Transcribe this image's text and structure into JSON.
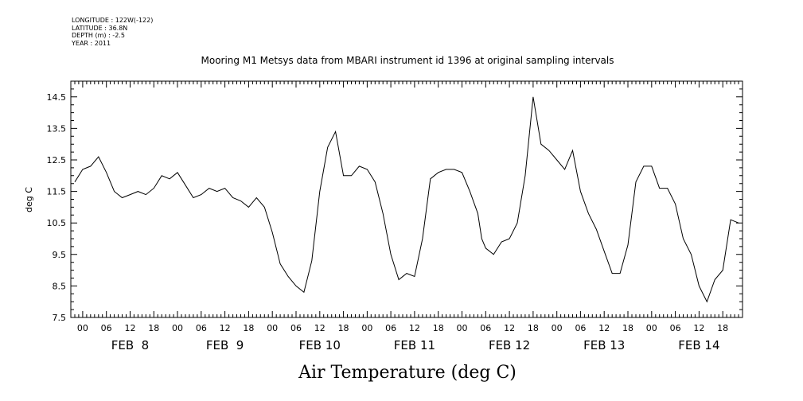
{
  "meta": {
    "longitude": "LONGITUDE : 122W(-122)",
    "latitude": "LATITUDE : 36.8N",
    "depth": "DEPTH (m) : -2.5",
    "year": "YEAR : 2011"
  },
  "chart_data": {
    "type": "line",
    "title": "Mooring M1 Metsys data from MBARI instrument id 1396 at original sampling intervals",
    "xlabel": "Air Temperature (deg C)",
    "ylabel": "deg C",
    "ylim": [
      7.5,
      15.0
    ],
    "xlim_hours": [
      -3,
      167
    ],
    "y_ticks": [
      7.5,
      8.5,
      9.5,
      10.5,
      11.5,
      12.5,
      13.5,
      14.5
    ],
    "y_tick_labels": [
      "7.5",
      "8.5",
      "9.5",
      "10.5",
      "11.5",
      "12.5",
      "13.5",
      "14.5"
    ],
    "x_hour_labels": [
      "00",
      "06",
      "12",
      "18"
    ],
    "days": [
      "FEB  8",
      "FEB  9",
      "FEB 10",
      "FEB 11",
      "FEB 12",
      "FEB 13",
      "FEB 14"
    ],
    "grid": false,
    "series": [
      {
        "x": [
          -2,
          0,
          2,
          4,
          6,
          8,
          10,
          12,
          14,
          16,
          18,
          20,
          22,
          24,
          26,
          28,
          30,
          32,
          34,
          36,
          38,
          40,
          42,
          44,
          46,
          48,
          50,
          52,
          54,
          56,
          58,
          60,
          62,
          64,
          66,
          68,
          70,
          72,
          74,
          76,
          78,
          80,
          82,
          84,
          86,
          88,
          90,
          92,
          94,
          96,
          98,
          100,
          101,
          102,
          104,
          106,
          108,
          110,
          112,
          114,
          116,
          118,
          120,
          122,
          124,
          126,
          128,
          130,
          132,
          134,
          136,
          138,
          140,
          142,
          144,
          146,
          148,
          150,
          152,
          154,
          156,
          158,
          160,
          162,
          164,
          166
        ],
        "y": [
          11.8,
          12.2,
          12.3,
          12.6,
          12.1,
          11.5,
          11.3,
          11.4,
          11.5,
          11.4,
          11.6,
          12.0,
          11.9,
          12.1,
          11.7,
          11.3,
          11.4,
          11.6,
          11.5,
          11.6,
          11.3,
          11.2,
          11.0,
          11.3,
          11.0,
          10.2,
          9.2,
          8.8,
          8.5,
          8.3,
          9.3,
          11.5,
          12.9,
          13.4,
          12.0,
          12.0,
          12.3,
          12.2,
          11.8,
          10.8,
          9.5,
          8.7,
          8.9,
          8.8,
          10.0,
          11.9,
          12.1,
          12.2,
          12.2,
          12.1,
          11.5,
          10.8,
          10.0,
          9.7,
          9.5,
          9.9,
          10.0,
          10.5,
          12.0,
          14.5,
          13.0,
          12.8,
          12.5,
          12.2,
          12.8,
          11.5,
          10.8,
          10.3,
          9.6,
          8.9,
          8.9,
          9.8,
          11.8,
          12.3,
          12.3,
          11.6,
          11.6,
          11.1,
          10.0,
          9.5,
          8.5,
          8.0,
          8.7,
          9.0,
          10.6,
          10.5
        ]
      }
    ]
  }
}
